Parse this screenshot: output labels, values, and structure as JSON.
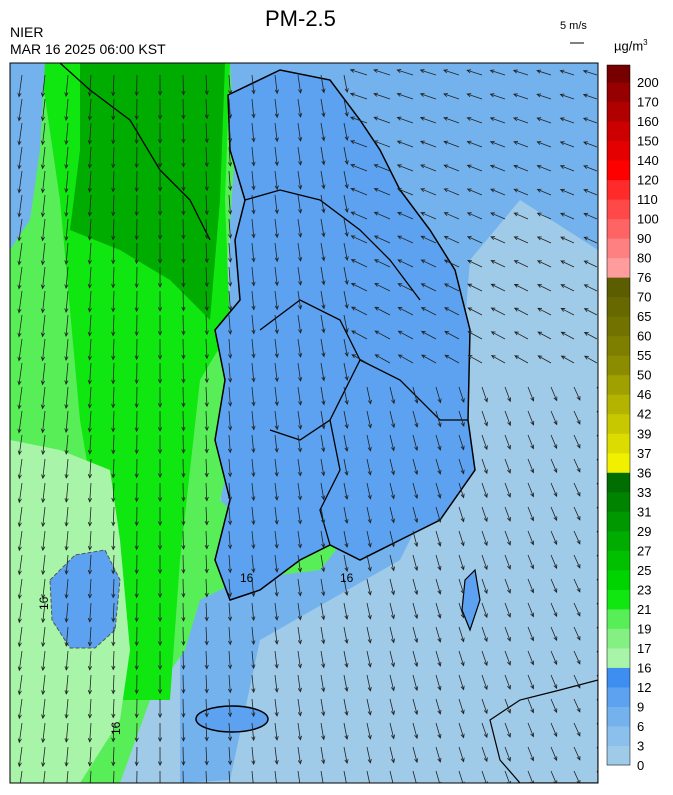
{
  "header": {
    "title": "PM-2.5",
    "agency": "NIER",
    "datetime": "MAR 16 2025 06:00 KST",
    "wind_scale": "5 m/s"
  },
  "legend": {
    "unit": "µg/m",
    "unit_power": "3",
    "ticks": [
      "0",
      "3",
      "6",
      "9",
      "12",
      "16",
      "17",
      "19",
      "21",
      "23",
      "25",
      "27",
      "29",
      "31",
      "33",
      "36",
      "37",
      "39",
      "42",
      "46",
      "50",
      "55",
      "60",
      "65",
      "70",
      "76",
      "80",
      "90",
      "100",
      "110",
      "120",
      "140",
      "150",
      "160",
      "170",
      "200"
    ],
    "colors": [
      "#9fcbe9",
      "#8cc0ec",
      "#74b2ee",
      "#5ca2f0",
      "#3d8ef0",
      "#a8f4a8",
      "#84f084",
      "#58ee58",
      "#10e610",
      "#00d400",
      "#00c000",
      "#00ac00",
      "#009800",
      "#008400",
      "#006e00",
      "#f0f000",
      "#dcdc00",
      "#c8c800",
      "#b4b400",
      "#a0a000",
      "#8c8c00",
      "#7e7e00",
      "#727200",
      "#686800",
      "#5c5c00",
      "#ff9c9c",
      "#ff8080",
      "#ff6464",
      "#ff4848",
      "#ff2a2a",
      "#ff0000",
      "#e40000",
      "#cc0000",
      "#b00000",
      "#960000",
      "#760000"
    ]
  },
  "contour_labels": [
    "16",
    "16",
    "16",
    "16"
  ]
}
